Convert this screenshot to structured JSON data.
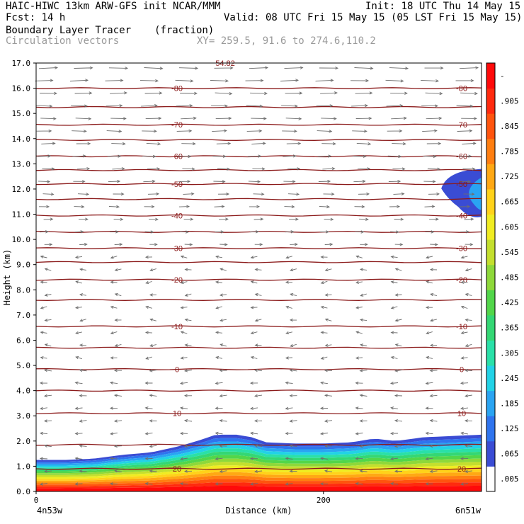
{
  "header": {
    "line1_left": "HAIC-HIWC 13km ARW-GFS init   NCAR/MMM",
    "line1_right": "Init: 18 UTC Thu 14 May 15",
    "line2_left": "Fcst:   14 h",
    "line2_right": "Valid: 08 UTC Fri 15 May 15 (05 LST Fri 15 May 15)",
    "field_name": "Boundary Layer Tracer",
    "field_units": "(fraction)",
    "vector_label": "Circulation vectors",
    "cross_section": "XY= 259.5, 91.6 to 274.6,110.2",
    "max_label": "54.82"
  },
  "colors": {
    "contour_line": "#8b1a1a",
    "vector": "#6e6e6e",
    "frame": "#000000"
  },
  "chart_data": {
    "type": "heatmap",
    "xlabel": "Distance (km)",
    "ylabel": "Height (km)",
    "xlim": [
      0,
      310
    ],
    "ylim": [
      0,
      17
    ],
    "x_ticks": [
      {
        "value": 0,
        "label": "0"
      },
      {
        "value": 200,
        "label": "200"
      }
    ],
    "x_end_labels": {
      "left": "4n53w",
      "right": "6n51w"
    },
    "y_ticks": [
      {
        "value": 0,
        "label": "0.0"
      },
      {
        "value": 1,
        "label": "1.0"
      },
      {
        "value": 2,
        "label": "2.0"
      },
      {
        "value": 3,
        "label": "3.0"
      },
      {
        "value": 4,
        "label": "4.0"
      },
      {
        "value": 5,
        "label": "5.0"
      },
      {
        "value": 6,
        "label": "6.0"
      },
      {
        "value": 7,
        "label": "7.0"
      },
      {
        "value": 8,
        "label": "8.0"
      },
      {
        "value": 9,
        "label": "9.0"
      },
      {
        "value": 10,
        "label": "10.0"
      },
      {
        "value": 11,
        "label": "11.0"
      },
      {
        "value": 12,
        "label": "12.0"
      },
      {
        "value": 13,
        "label": "13.0"
      },
      {
        "value": 14,
        "label": "14.0"
      },
      {
        "value": 15,
        "label": "15.0"
      },
      {
        "value": 16,
        "label": "16.0"
      },
      {
        "value": 17,
        "label": "17.0"
      }
    ],
    "colorbar": {
      "labels": [
        ".005",
        ".065",
        ".125",
        ".185",
        ".245",
        ".305",
        ".365",
        ".425",
        ".485",
        ".545",
        ".605",
        ".665",
        ".725",
        ".785",
        ".845",
        ".905",
        "-"
      ],
      "colors": [
        "#ffffff",
        "#3a4cd4",
        "#2f74ee",
        "#2aa4f2",
        "#22d2e6",
        "#2ae0a8",
        "#34d774",
        "#52d64a",
        "#8ed83a",
        "#c4df2e",
        "#f0ec22",
        "#ffd21a",
        "#ffa814",
        "#ff7e10",
        "#ff540e",
        "#ff2a0e",
        "#ff0a0a"
      ]
    },
    "tracer_top_km": [
      {
        "x": 0,
        "y": 1.25
      },
      {
        "x": 20,
        "y": 1.25
      },
      {
        "x": 40,
        "y": 1.3
      },
      {
        "x": 60,
        "y": 1.45
      },
      {
        "x": 80,
        "y": 1.55
      },
      {
        "x": 100,
        "y": 1.8
      },
      {
        "x": 115,
        "y": 2.05
      },
      {
        "x": 125,
        "y": 2.25
      },
      {
        "x": 140,
        "y": 2.25
      },
      {
        "x": 150,
        "y": 2.15
      },
      {
        "x": 160,
        "y": 1.95
      },
      {
        "x": 180,
        "y": 1.9
      },
      {
        "x": 200,
        "y": 1.9
      },
      {
        "x": 220,
        "y": 1.95
      },
      {
        "x": 235,
        "y": 2.1
      },
      {
        "x": 250,
        "y": 2.0
      },
      {
        "x": 270,
        "y": 2.15
      },
      {
        "x": 290,
        "y": 2.2
      },
      {
        "x": 310,
        "y": 2.25
      }
    ],
    "upper_blob": {
      "x_start": 282,
      "x_end": 310,
      "y_bottom": 10.9,
      "y_top": 12.8
    },
    "temperature_contours": [
      {
        "y": 0.9,
        "label": "20"
      },
      {
        "y": 1.85,
        "label": ""
      },
      {
        "y": 3.1,
        "label": "10"
      },
      {
        "y": 4.0,
        "label": ""
      },
      {
        "y": 4.85,
        "label": "0"
      },
      {
        "y": 5.7,
        "label": ""
      },
      {
        "y": 6.55,
        "label": "-10"
      },
      {
        "y": 7.6,
        "label": ""
      },
      {
        "y": 8.4,
        "label": "-20"
      },
      {
        "y": 9.1,
        "label": ""
      },
      {
        "y": 9.65,
        "label": "-30"
      },
      {
        "y": 10.3,
        "label": ""
      },
      {
        "y": 10.95,
        "label": "-40"
      },
      {
        "y": 11.6,
        "label": ""
      },
      {
        "y": 12.2,
        "label": "-50"
      },
      {
        "y": 12.75,
        "label": ""
      },
      {
        "y": 13.3,
        "label": "-60"
      },
      {
        "y": 13.95,
        "label": ""
      },
      {
        "y": 14.55,
        "label": "-70"
      },
      {
        "y": 15.25,
        "label": ""
      },
      {
        "y": 16.0,
        "label": "-80"
      }
    ]
  }
}
